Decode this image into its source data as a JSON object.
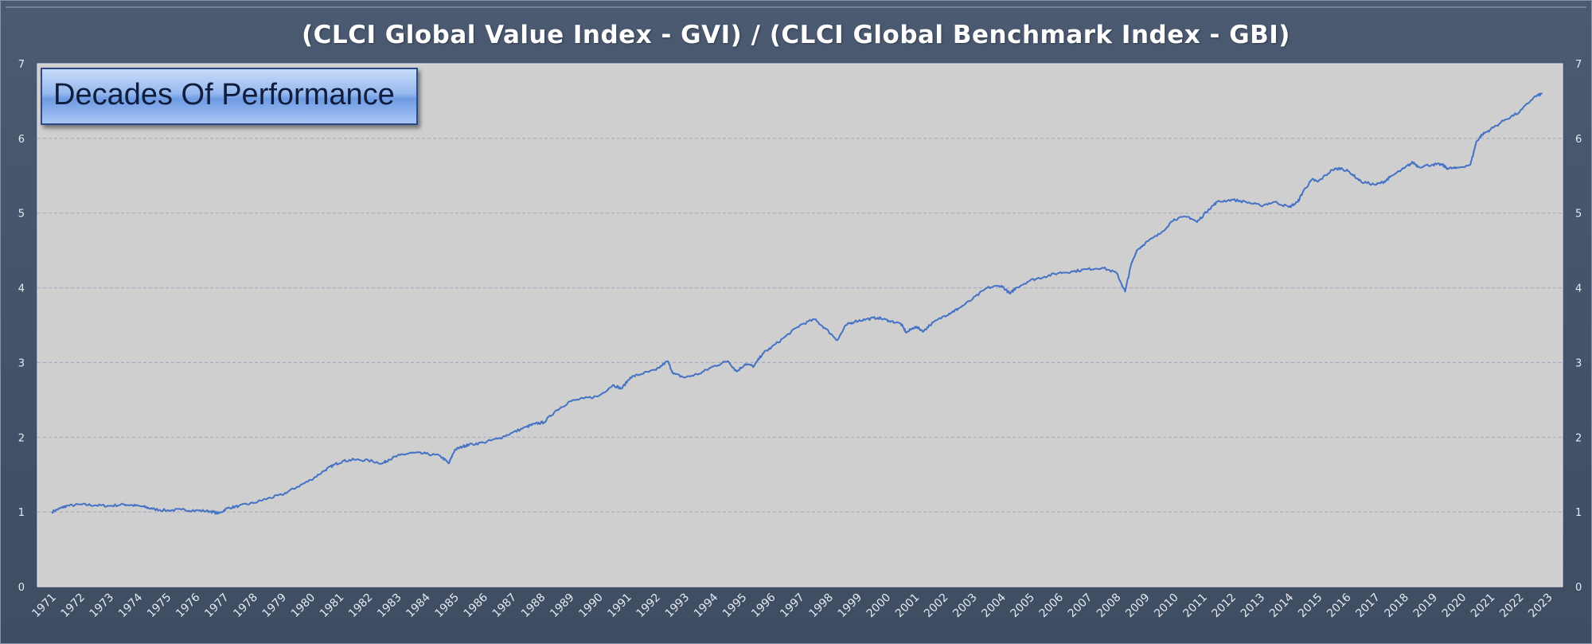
{
  "chart_data": {
    "type": "line",
    "title": "(CLCI Global Value Index - GVI) / (CLCI Global Benchmark Index  - GBI)",
    "annotation": "Decades Of Performance",
    "xlabel": "",
    "ylabel": "",
    "x_ticks": [
      "1971",
      "1972",
      "1973",
      "1974",
      "1975",
      "1976",
      "1977",
      "1978",
      "1979",
      "1980",
      "1981",
      "1982",
      "1983",
      "1984",
      "1985",
      "1986",
      "1987",
      "1988",
      "1989",
      "1990",
      "1991",
      "1992",
      "1993",
      "1994",
      "1995",
      "1996",
      "1997",
      "1998",
      "1999",
      "2000",
      "2001",
      "2002",
      "2003",
      "2004",
      "2005",
      "2006",
      "2007",
      "2008",
      "2009",
      "2010",
      "2011",
      "2012",
      "2013",
      "2014",
      "2015",
      "2016",
      "2017",
      "2018",
      "2019",
      "2020",
      "2021",
      "2022",
      "2023"
    ],
    "y_ticks": [
      "0",
      "1",
      "2",
      "3",
      "4",
      "5",
      "6",
      "7"
    ],
    "ylim": [
      0,
      7
    ],
    "y_axis_right": true,
    "grid": "horizontal-dashed",
    "line_color": "#4472c4",
    "plot_background": "#d0cfd0",
    "series": [
      {
        "x": [
          1971.5,
          1971.8,
          1972.0,
          1972.5,
          1973.0,
          1973.5,
          1974.0,
          1974.3,
          1974.7,
          1975.0,
          1975.5,
          1976.0,
          1976.5,
          1977.0,
          1977.3,
          1977.6,
          1978.0,
          1978.5,
          1979.0,
          1979.5,
          1980.0,
          1980.5,
          1981.0,
          1981.3,
          1981.6,
          1982.0,
          1982.5,
          1983.0,
          1983.2,
          1983.6,
          1984.0,
          1984.5,
          1985.0,
          1985.3,
          1985.5,
          1985.8,
          1986.0,
          1986.5,
          1987.0,
          1987.5,
          1988.0,
          1988.3,
          1988.6,
          1989.0,
          1989.5,
          1990.0,
          1990.5,
          1991.0,
          1991.3,
          1991.6,
          1992.0,
          1992.5,
          1992.9,
          1993.1,
          1993.5,
          1994.0,
          1994.5,
          1995.0,
          1995.3,
          1995.6,
          1995.9,
          1996.2,
          1996.5,
          1997.0,
          1997.5,
          1998.0,
          1998.4,
          1998.8,
          1999.1,
          1999.4,
          1999.8,
          2000.2,
          2000.6,
          2001.0,
          2001.2,
          2001.5,
          2001.8,
          2002.0,
          2002.5,
          2002.8,
          2003.0,
          2003.5,
          2004.0,
          2004.5,
          2004.8,
          2005.0,
          2005.5,
          2006.0,
          2006.5,
          2007.0,
          2007.5,
          2008.0,
          2008.5,
          2008.8,
          2009.0,
          2009.2,
          2009.5,
          2010.0,
          2010.5,
          2011.0,
          2011.3,
          2011.7,
          2012.0,
          2012.5,
          2013.0,
          2013.5,
          2014.0,
          2014.5,
          2014.8,
          2015.0,
          2015.3,
          2015.5,
          2016.0,
          2016.3,
          2016.6,
          2017.0,
          2017.5,
          2017.8,
          2018.0,
          2018.5,
          2018.8,
          2019.0,
          2019.5,
          2019.8,
          2020.0,
          2020.3,
          2020.8,
          2021.0,
          2021.2,
          2021.5,
          2022.0,
          2022.5,
          2023.0,
          2023.3
        ],
        "y": [
          1.0,
          1.05,
          1.08,
          1.1,
          1.09,
          1.08,
          1.1,
          1.09,
          1.07,
          1.04,
          1.02,
          1.03,
          1.02,
          1.01,
          0.98,
          1.05,
          1.08,
          1.12,
          1.18,
          1.23,
          1.33,
          1.43,
          1.56,
          1.63,
          1.68,
          1.7,
          1.69,
          1.65,
          1.7,
          1.76,
          1.79,
          1.78,
          1.75,
          1.65,
          1.83,
          1.88,
          1.9,
          1.93,
          1.98,
          2.06,
          2.14,
          2.18,
          2.2,
          2.35,
          2.48,
          2.52,
          2.55,
          2.7,
          2.65,
          2.8,
          2.85,
          2.9,
          3.02,
          2.85,
          2.8,
          2.85,
          2.95,
          3.02,
          2.88,
          2.98,
          2.95,
          3.12,
          3.2,
          3.35,
          3.5,
          3.58,
          3.45,
          3.3,
          3.5,
          3.55,
          3.58,
          3.6,
          3.56,
          3.52,
          3.4,
          3.48,
          3.42,
          3.5,
          3.62,
          3.68,
          3.72,
          3.85,
          4.0,
          4.03,
          3.92,
          4.0,
          4.1,
          4.15,
          4.2,
          4.22,
          4.25,
          4.27,
          4.2,
          3.95,
          4.3,
          4.5,
          4.6,
          4.72,
          4.92,
          4.95,
          4.88,
          5.05,
          5.15,
          5.18,
          5.15,
          5.1,
          5.15,
          5.08,
          5.15,
          5.3,
          5.45,
          5.42,
          5.58,
          5.6,
          5.55,
          5.42,
          5.38,
          5.42,
          5.48,
          5.6,
          5.68,
          5.62,
          5.65,
          5.65,
          5.6,
          5.6,
          5.65,
          5.95,
          6.05,
          6.12,
          6.25,
          6.35,
          6.55,
          6.6
        ]
      }
    ]
  }
}
